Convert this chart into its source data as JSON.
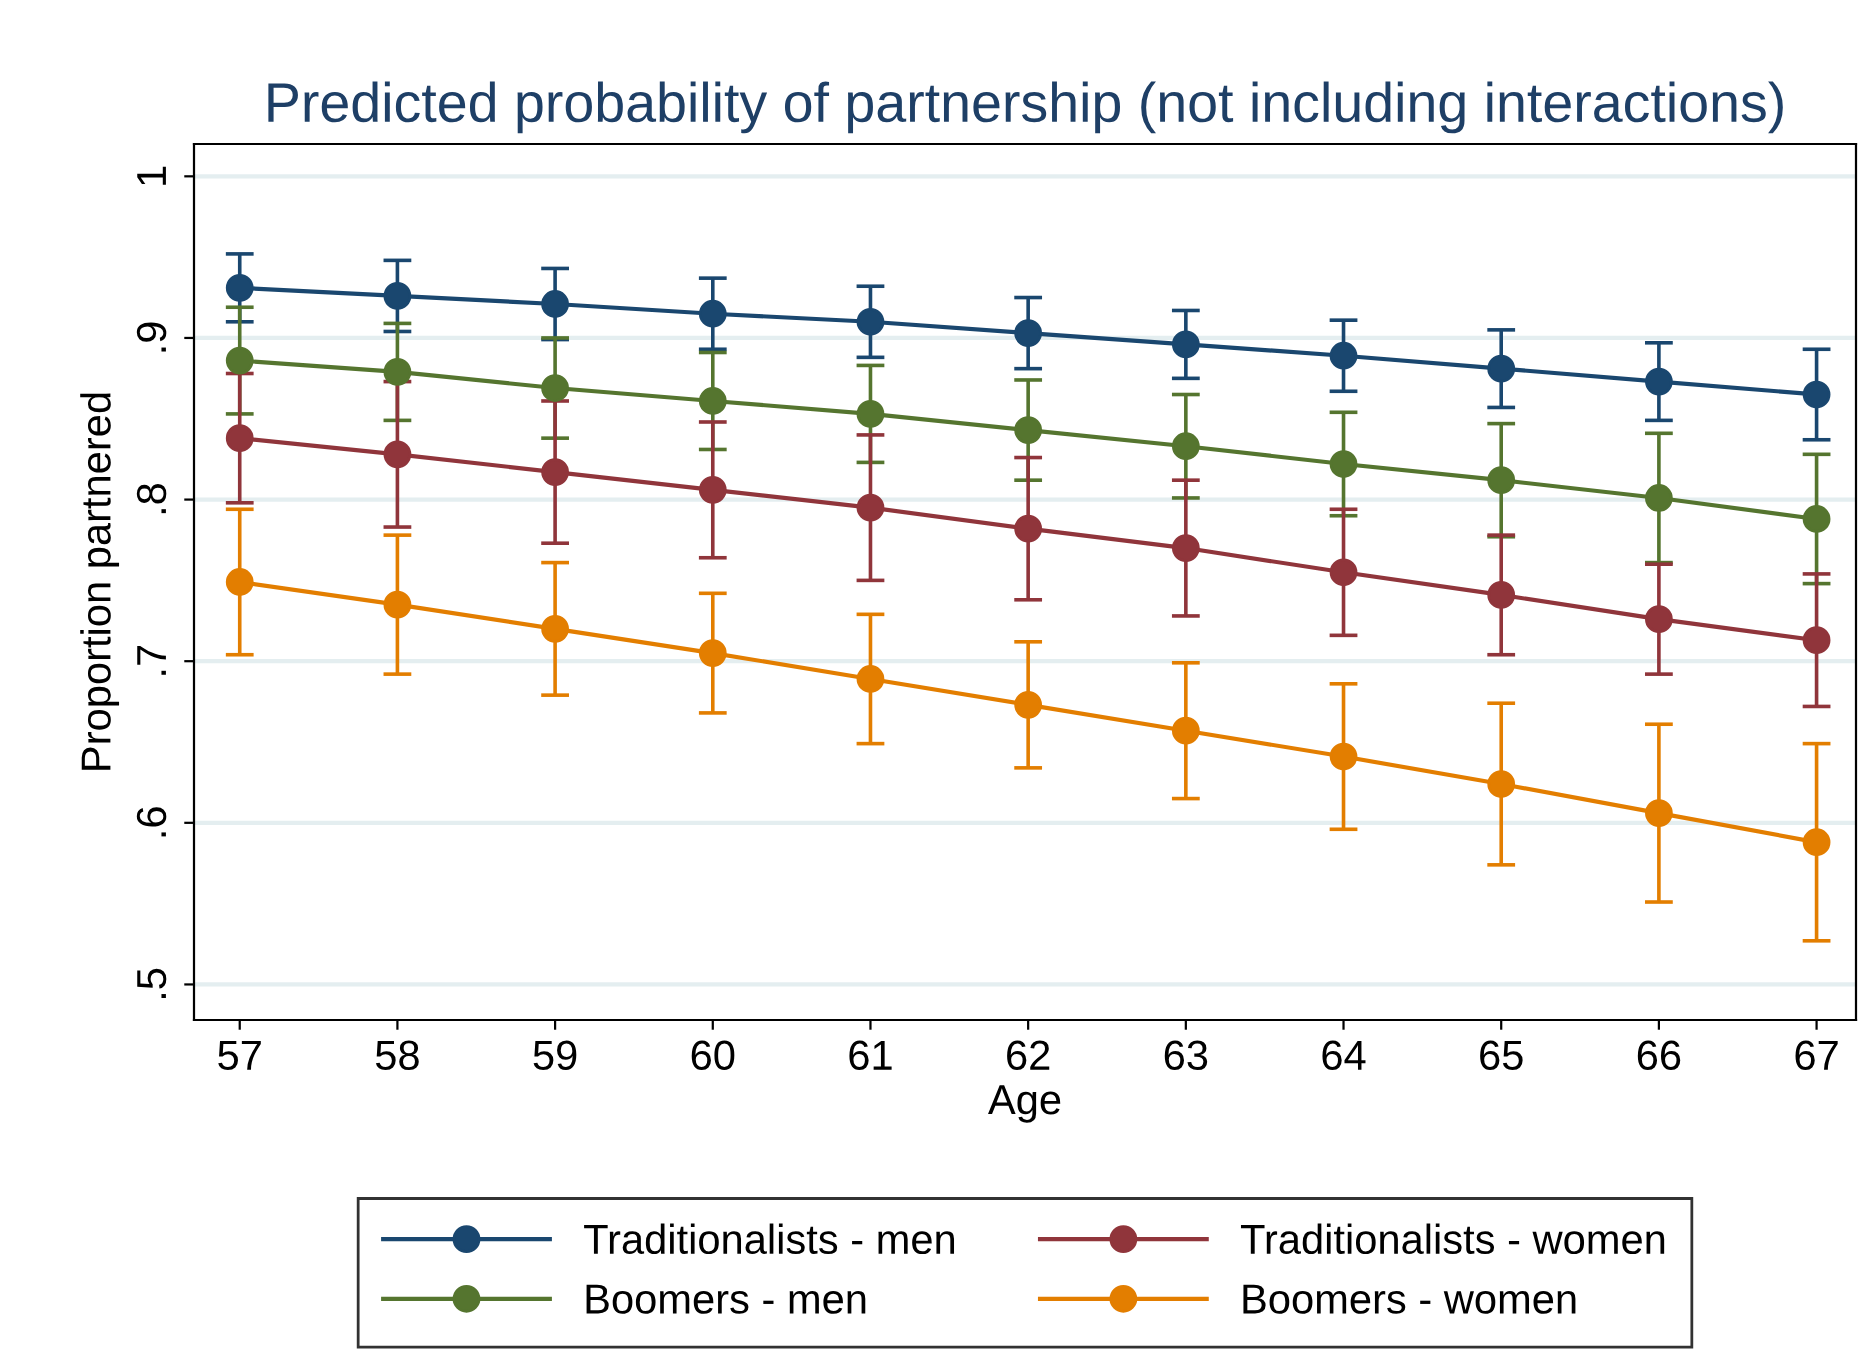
{
  "chart_data": {
    "type": "line",
    "title": "Predicted probability of partnership (not including interactions)",
    "xlabel": "Age",
    "ylabel": "Proportion partnered",
    "x": [
      57,
      58,
      59,
      60,
      61,
      62,
      63,
      64,
      65,
      66,
      67
    ],
    "series": [
      {
        "name": "Traditionalists - men",
        "color": "#1a476f",
        "values": [
          0.931,
          0.926,
          0.921,
          0.915,
          0.91,
          0.903,
          0.896,
          0.889,
          0.881,
          0.873,
          0.865
        ],
        "errors": [
          0.021,
          0.022,
          0.022,
          0.022,
          0.022,
          0.022,
          0.021,
          0.022,
          0.024,
          0.024,
          0.028
        ]
      },
      {
        "name": "Boomers - men",
        "color": "#55752f",
        "values": [
          0.886,
          0.879,
          0.869,
          0.861,
          0.853,
          0.843,
          0.833,
          0.822,
          0.812,
          0.801,
          0.788
        ],
        "errors": [
          0.033,
          0.03,
          0.031,
          0.03,
          0.03,
          0.031,
          0.032,
          0.032,
          0.035,
          0.04,
          0.04
        ]
      },
      {
        "name": "Traditionalists - women",
        "color": "#90353b",
        "values": [
          0.838,
          0.828,
          0.817,
          0.806,
          0.795,
          0.782,
          0.77,
          0.755,
          0.741,
          0.726,
          0.713
        ],
        "errors": [
          0.04,
          0.045,
          0.044,
          0.042,
          0.045,
          0.044,
          0.042,
          0.039,
          0.037,
          0.034,
          0.041
        ]
      },
      {
        "name": "Boomers - women",
        "color": "#e37e00",
        "values": [
          0.749,
          0.735,
          0.72,
          0.705,
          0.689,
          0.673,
          0.657,
          0.641,
          0.624,
          0.606,
          0.588
        ],
        "errors": [
          0.045,
          0.043,
          0.041,
          0.037,
          0.04,
          0.039,
          0.042,
          0.045,
          0.05,
          0.055,
          0.061
        ]
      }
    ],
    "xlim": [
      56.71,
      67.25
    ],
    "xticks": [
      57,
      58,
      59,
      60,
      61,
      62,
      63,
      64,
      65,
      66,
      67
    ],
    "ylim": [
      0.478,
      1.02
    ],
    "yticks": [
      {
        "value": 0.5,
        "label": ".5"
      },
      {
        "value": 0.6,
        "label": ".6"
      },
      {
        "value": 0.7,
        "label": ".7"
      },
      {
        "value": 0.8,
        "label": ".8"
      },
      {
        "value": 0.9,
        "label": ".9"
      },
      1
    ],
    "grid": "y",
    "legend": "bottom",
    "marker": "circle",
    "line_style": "solid"
  }
}
